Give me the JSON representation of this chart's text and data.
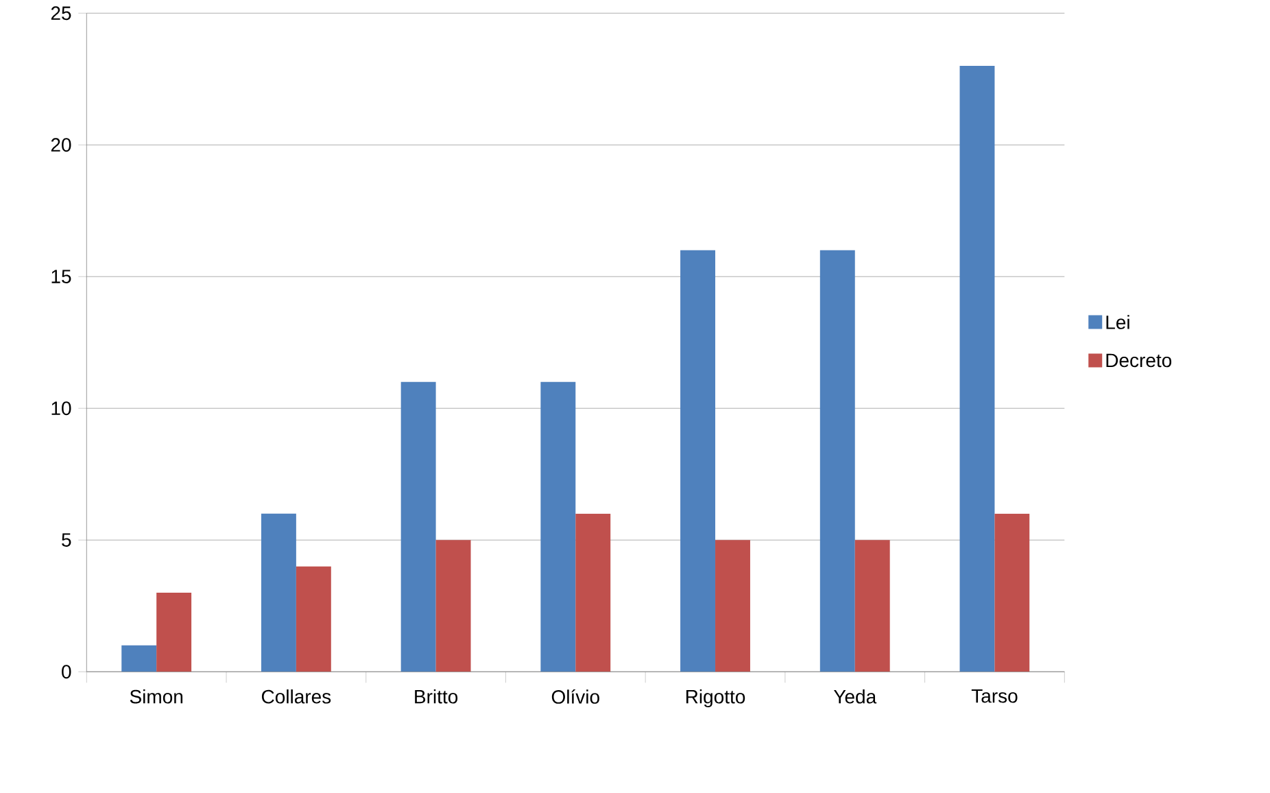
{
  "chart_data": {
    "type": "bar",
    "categories": [
      "Simon",
      "Collares",
      "Britto",
      "Olívio",
      "Rigotto",
      "Yeda",
      "Tarso"
    ],
    "series": [
      {
        "name": "Lei",
        "color": "#4f81bd",
        "values": [
          1,
          6,
          11,
          11,
          16,
          16,
          23
        ]
      },
      {
        "name": "Decreto",
        "color": "#c0504d",
        "values": [
          3,
          4,
          5,
          6,
          5,
          5,
          6
        ]
      }
    ],
    "ylim": [
      0,
      25
    ],
    "yticks": [
      0,
      5,
      10,
      15,
      20,
      25
    ],
    "grid": "y",
    "legend": "right"
  }
}
